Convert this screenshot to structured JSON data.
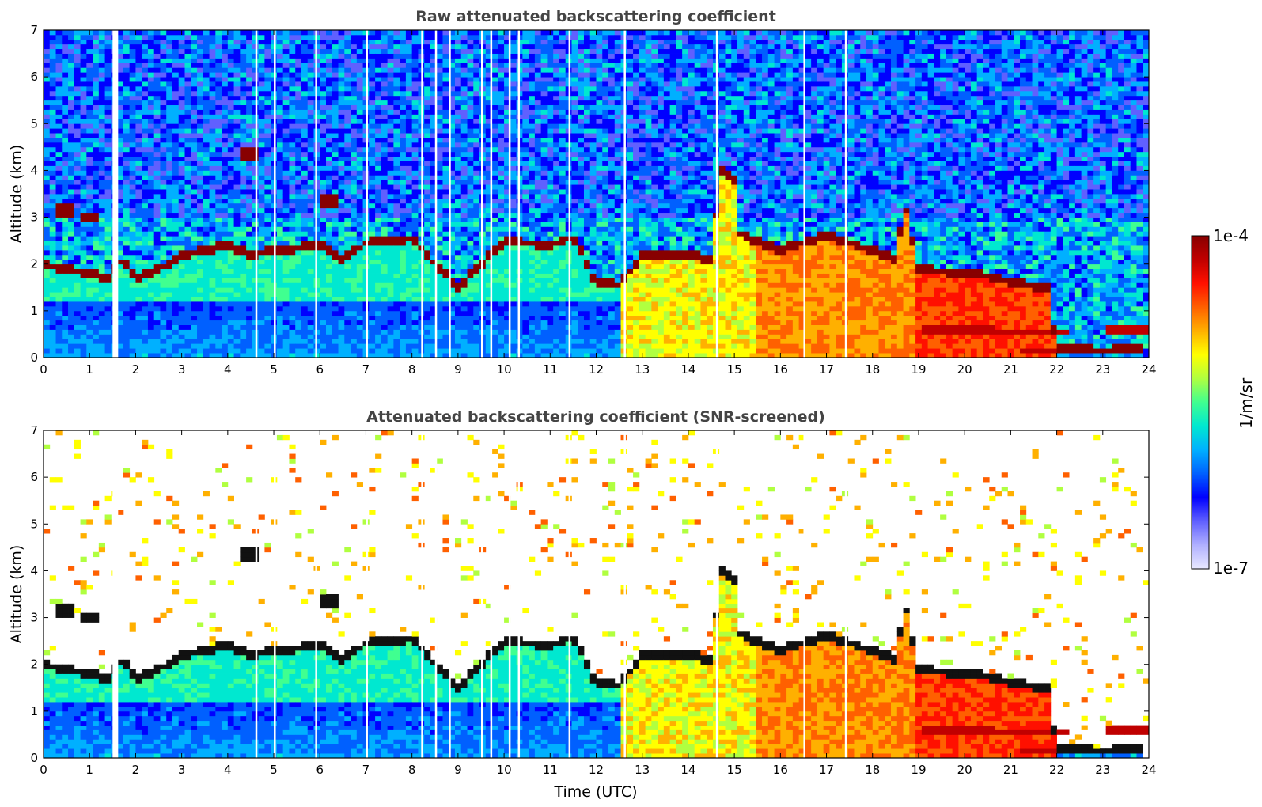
{
  "panels": [
    {
      "title": "Raw attenuated backscattering coefficient",
      "ylabel": "Altitude (km)",
      "xlabel": ""
    },
    {
      "title": "Attenuated backscattering coefficient (SNR-screened)",
      "ylabel": "Altitude (km)",
      "xlabel": "Time (UTC)"
    }
  ],
  "colorbar": {
    "label": "1/m/sr",
    "max_label": "1e-4",
    "min_label": "1e-7",
    "colors": [
      "#e8e8ff",
      "#b0b0ff",
      "#6060ff",
      "#0000ff",
      "#0060ff",
      "#00b0ff",
      "#00e8d0",
      "#40ff90",
      "#b0ff40",
      "#ffff00",
      "#ffb000",
      "#ff6000",
      "#ff1000",
      "#c00000",
      "#880000"
    ]
  },
  "chart_data": [
    {
      "type": "heatmap",
      "title": "Raw attenuated backscattering coefficient",
      "xlabel": "",
      "ylabel": "Altitude (km)",
      "xlim": [
        0,
        24
      ],
      "ylim": [
        0,
        7
      ],
      "xticks": [
        0,
        1,
        2,
        3,
        4,
        5,
        6,
        7,
        8,
        9,
        10,
        11,
        12,
        13,
        14,
        15,
        16,
        17,
        18,
        19,
        20,
        21,
        22,
        23,
        24
      ],
      "yticks": [
        0,
        1,
        2,
        3,
        4,
        5,
        6,
        7
      ],
      "color_scale": "log",
      "clim": [
        "1e-7",
        "1e-4"
      ],
      "features": {
        "cloud_layer": [
          [
            0,
            2.0
          ],
          [
            0.5,
            1.9
          ],
          [
            1.0,
            1.8
          ],
          [
            1.4,
            1.7
          ],
          [
            1.7,
            2.1
          ],
          [
            2.0,
            1.7
          ],
          [
            2.5,
            1.9
          ],
          [
            3.0,
            2.2
          ],
          [
            4.0,
            2.4
          ],
          [
            4.5,
            2.2
          ],
          [
            5.0,
            2.3
          ],
          [
            5.5,
            2.35
          ],
          [
            6.0,
            2.4
          ],
          [
            6.5,
            2.1
          ],
          [
            7.0,
            2.45
          ],
          [
            7.5,
            2.5
          ],
          [
            8.0,
            2.55
          ],
          [
            9.0,
            1.5
          ],
          [
            10.0,
            2.5
          ],
          [
            11.0,
            2.4
          ],
          [
            11.5,
            2.6
          ],
          [
            12.0,
            1.6
          ],
          [
            12.5,
            1.55
          ],
          [
            13.0,
            2.2
          ],
          [
            14.0,
            2.2
          ],
          [
            14.5,
            2.1
          ],
          [
            14.7,
            4.0
          ],
          [
            15.0,
            3.8
          ],
          [
            15.0,
            2.7
          ],
          [
            16.0,
            2.3
          ],
          [
            17.0,
            2.6
          ],
          [
            18.0,
            2.3
          ],
          [
            18.5,
            2.1
          ],
          [
            18.7,
            3.3
          ],
          [
            19.0,
            1.9
          ],
          [
            19.5,
            1.85
          ],
          [
            20.0,
            1.8
          ],
          [
            20.5,
            1.75
          ],
          [
            21.0,
            1.6
          ],
          [
            21.8,
            1.5
          ],
          [
            22.0,
            0.2
          ],
          [
            23.0,
            0.15
          ],
          [
            23.9,
            0.2
          ]
        ],
        "elevated_patches": [
          [
            0.5,
            3.15
          ],
          [
            1.0,
            3.0
          ],
          [
            4.5,
            4.35
          ],
          [
            6.2,
            3.35
          ]
        ],
        "low_cloud": [
          [
            19.8,
            0.6
          ],
          [
            20.5,
            0.55
          ],
          [
            21.5,
            0.55
          ],
          [
            22.0,
            0.15
          ],
          [
            23.8,
            0.6
          ]
        ],
        "data_gaps": [
          1.5,
          4.6,
          5.0,
          5.9,
          7.0,
          8.2,
          8.5,
          8.8,
          9.5,
          9.7,
          10.1,
          10.3,
          11.4,
          12.6,
          14.6,
          16.5,
          17.4
        ]
      }
    },
    {
      "type": "heatmap",
      "title": "Attenuated backscattering coefficient (SNR-screened)",
      "xlabel": "Time (UTC)",
      "ylabel": "Altitude (km)",
      "xlim": [
        0,
        24
      ],
      "ylim": [
        0,
        7
      ],
      "xticks": [
        0,
        1,
        2,
        3,
        4,
        5,
        6,
        7,
        8,
        9,
        10,
        11,
        12,
        13,
        14,
        15,
        16,
        17,
        18,
        19,
        20,
        21,
        22,
        23,
        24
      ],
      "yticks": [
        0,
        1,
        2,
        3,
        4,
        5,
        6,
        7
      ],
      "color_scale": "log",
      "clim": [
        "1e-7",
        "1e-4"
      ]
    }
  ]
}
